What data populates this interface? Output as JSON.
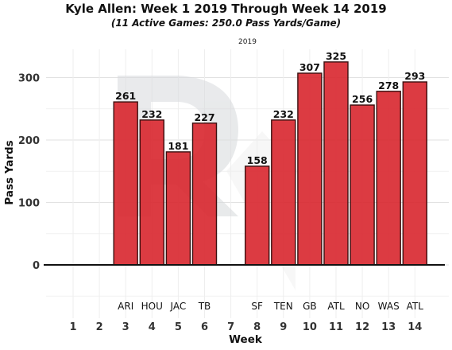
{
  "header": {
    "title": "Kyle Allen: Week 1 2019 Through Week 14 2019",
    "subtitle": "(11 Active Games: 250.0 Pass Yards/Game)",
    "facet_label": "2019"
  },
  "chart_data": {
    "type": "bar",
    "xlabel": "Week",
    "ylabel": "Pass Yards",
    "ylim": [
      -105,
      340
    ],
    "yticks": [
      0,
      100,
      200,
      300
    ],
    "weeks": [
      1,
      2,
      3,
      4,
      5,
      6,
      7,
      8,
      9,
      10,
      11,
      12,
      13,
      14
    ],
    "opponents": [
      "",
      "",
      "ARI",
      "HOU",
      "JAC",
      "TB",
      "",
      "SF",
      "TEN",
      "GB",
      "ATL",
      "NO",
      "WAS",
      "ATL"
    ],
    "values": [
      null,
      null,
      261,
      232,
      181,
      227,
      null,
      158,
      232,
      307,
      325,
      256,
      278,
      293
    ],
    "grid": true,
    "colors": {
      "bar_fill": "#d8262d",
      "bar_stroke": "#3a1010",
      "watermark": "#d7d9dc"
    }
  }
}
